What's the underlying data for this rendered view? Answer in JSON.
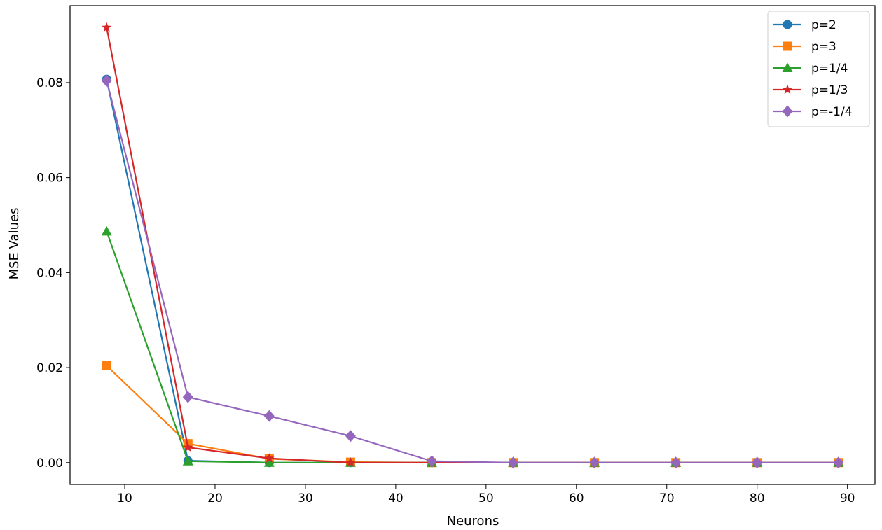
{
  "chart_data": {
    "type": "line",
    "title": "",
    "xlabel": "Neurons",
    "ylabel": "MSE Values",
    "xlim": [
      3.95,
      93.05
    ],
    "ylim": [
      -0.0046,
      0.0962
    ],
    "xticks": [
      10,
      20,
      30,
      40,
      50,
      60,
      70,
      80,
      90
    ],
    "xtick_labels": [
      "10",
      "20",
      "30",
      "40",
      "50",
      "60",
      "70",
      "80",
      "90"
    ],
    "yticks": [
      0.0,
      0.02,
      0.04,
      0.06,
      0.08
    ],
    "ytick_labels": [
      "0.00",
      "0.02",
      "0.04",
      "0.06",
      "0.08"
    ],
    "grid": false,
    "legend_position": "top-right",
    "x": [
      8,
      17,
      26,
      35,
      44,
      53,
      62,
      71,
      80,
      89
    ],
    "series": [
      {
        "name": "p=2",
        "color": "#1f77b4",
        "marker": "circle",
        "values": [
          0.0807,
          0.0004,
          0.0,
          0.0,
          0.0,
          0.0,
          0.0,
          0.0,
          0.0,
          0.0
        ]
      },
      {
        "name": "p=3",
        "color": "#ff7f0e",
        "marker": "square",
        "values": [
          0.0204,
          0.004,
          0.0008,
          0.0001,
          0.0,
          0.0,
          0.0,
          0.0,
          0.0,
          0.0
        ]
      },
      {
        "name": "p=1/4",
        "color": "#2ca02c",
        "marker": "triangle",
        "values": [
          0.0487,
          0.0003,
          0.0,
          0.0,
          0.0,
          0.0,
          0.0,
          0.0,
          0.0,
          0.0
        ]
      },
      {
        "name": "p=1/3",
        "color": "#d62728",
        "marker": "star",
        "values": [
          0.0916,
          0.0032,
          0.0009,
          0.0,
          0.0,
          0.0,
          0.0,
          0.0,
          0.0,
          0.0
        ]
      },
      {
        "name": "p=-1/4",
        "color": "#9467bd",
        "marker": "diamond",
        "values": [
          0.0804,
          0.0138,
          0.0098,
          0.0056,
          0.0003,
          0.0,
          0.0,
          0.0,
          0.0,
          0.0
        ]
      }
    ]
  }
}
